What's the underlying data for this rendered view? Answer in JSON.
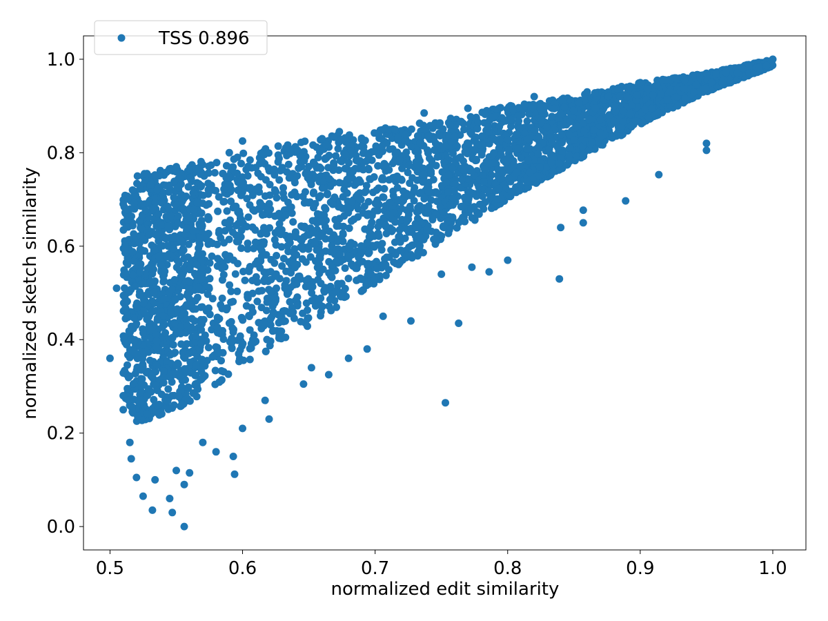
{
  "chart_data": {
    "type": "scatter",
    "title": "",
    "xlabel": "normalized edit similarity",
    "ylabel": "normalized sketch similarity",
    "xlim": [
      0.48,
      1.025
    ],
    "ylim": [
      -0.05,
      1.05
    ],
    "xticks": [
      0.5,
      0.6,
      0.7,
      0.8,
      0.9,
      1.0
    ],
    "xtick_labels": [
      "0.5",
      "0.6",
      "0.7",
      "0.8",
      "0.9",
      "1.0"
    ],
    "yticks": [
      0.0,
      0.2,
      0.4,
      0.6,
      0.8,
      1.0
    ],
    "ytick_labels": [
      "0.0",
      "0.2",
      "0.4",
      "0.6",
      "0.8",
      "1.0"
    ],
    "grid": false,
    "legend_position": "top-left",
    "series": [
      {
        "name": "TSS 0.896",
        "color": "#1f77b4",
        "marker": "circle",
        "points_sampled": true,
        "envelope": {
          "x": [
            0.51,
            0.52,
            0.55,
            0.6,
            0.65,
            0.7,
            0.75,
            0.8,
            0.85,
            0.9,
            0.95,
            1.0
          ],
          "upper": [
            0.71,
            0.75,
            0.77,
            0.8,
            0.83,
            0.85,
            0.87,
            0.9,
            0.92,
            0.95,
            0.97,
            1.0
          ],
          "lower": [
            0.28,
            0.22,
            0.25,
            0.34,
            0.43,
            0.52,
            0.61,
            0.7,
            0.78,
            0.86,
            0.93,
            0.985
          ]
        },
        "points": [
          {
            "x": 0.51,
            "y": 0.69
          },
          {
            "x": 0.505,
            "y": 0.51
          },
          {
            "x": 0.5,
            "y": 0.36
          },
          {
            "x": 0.51,
            "y": 0.28
          },
          {
            "x": 0.51,
            "y": 0.25
          },
          {
            "x": 0.515,
            "y": 0.18
          },
          {
            "x": 0.516,
            "y": 0.145
          },
          {
            "x": 0.52,
            "y": 0.105
          },
          {
            "x": 0.525,
            "y": 0.065
          },
          {
            "x": 0.532,
            "y": 0.035
          },
          {
            "x": 0.534,
            "y": 0.1
          },
          {
            "x": 0.545,
            "y": 0.06
          },
          {
            "x": 0.547,
            "y": 0.03
          },
          {
            "x": 0.556,
            "y": 0.0
          },
          {
            "x": 0.556,
            "y": 0.09
          },
          {
            "x": 0.56,
            "y": 0.115
          },
          {
            "x": 0.55,
            "y": 0.12
          },
          {
            "x": 0.57,
            "y": 0.18
          },
          {
            "x": 0.58,
            "y": 0.16
          },
          {
            "x": 0.594,
            "y": 0.112
          },
          {
            "x": 0.593,
            "y": 0.15
          },
          {
            "x": 0.6,
            "y": 0.21
          },
          {
            "x": 0.62,
            "y": 0.23
          },
          {
            "x": 0.617,
            "y": 0.27
          },
          {
            "x": 0.646,
            "y": 0.305
          },
          {
            "x": 0.652,
            "y": 0.34
          },
          {
            "x": 0.665,
            "y": 0.325
          },
          {
            "x": 0.68,
            "y": 0.36
          },
          {
            "x": 0.694,
            "y": 0.38
          },
          {
            "x": 0.706,
            "y": 0.45
          },
          {
            "x": 0.727,
            "y": 0.44
          },
          {
            "x": 0.753,
            "y": 0.265
          },
          {
            "x": 0.763,
            "y": 0.435
          },
          {
            "x": 0.75,
            "y": 0.54
          },
          {
            "x": 0.773,
            "y": 0.555
          },
          {
            "x": 0.786,
            "y": 0.545
          },
          {
            "x": 0.8,
            "y": 0.57
          },
          {
            "x": 0.839,
            "y": 0.53
          },
          {
            "x": 0.84,
            "y": 0.64
          },
          {
            "x": 0.857,
            "y": 0.65
          },
          {
            "x": 0.857,
            "y": 0.677
          },
          {
            "x": 0.889,
            "y": 0.697
          },
          {
            "x": 0.914,
            "y": 0.753
          },
          {
            "x": 0.95,
            "y": 0.805
          },
          {
            "x": 0.95,
            "y": 0.82
          },
          {
            "x": 0.526,
            "y": 0.755
          },
          {
            "x": 0.517,
            "y": 0.72
          },
          {
            "x": 0.55,
            "y": 0.77
          },
          {
            "x": 0.567,
            "y": 0.765
          },
          {
            "x": 0.6,
            "y": 0.825
          },
          {
            "x": 0.59,
            "y": 0.8
          },
          {
            "x": 0.66,
            "y": 0.83
          },
          {
            "x": 0.673,
            "y": 0.845
          },
          {
            "x": 0.737,
            "y": 0.885
          },
          {
            "x": 0.77,
            "y": 0.895
          },
          {
            "x": 0.82,
            "y": 0.92
          },
          {
            "x": 0.86,
            "y": 0.93
          },
          {
            "x": 0.9,
            "y": 0.95
          },
          {
            "x": 0.95,
            "y": 0.97
          },
          {
            "x": 1.0,
            "y": 1.0
          }
        ]
      }
    ]
  }
}
